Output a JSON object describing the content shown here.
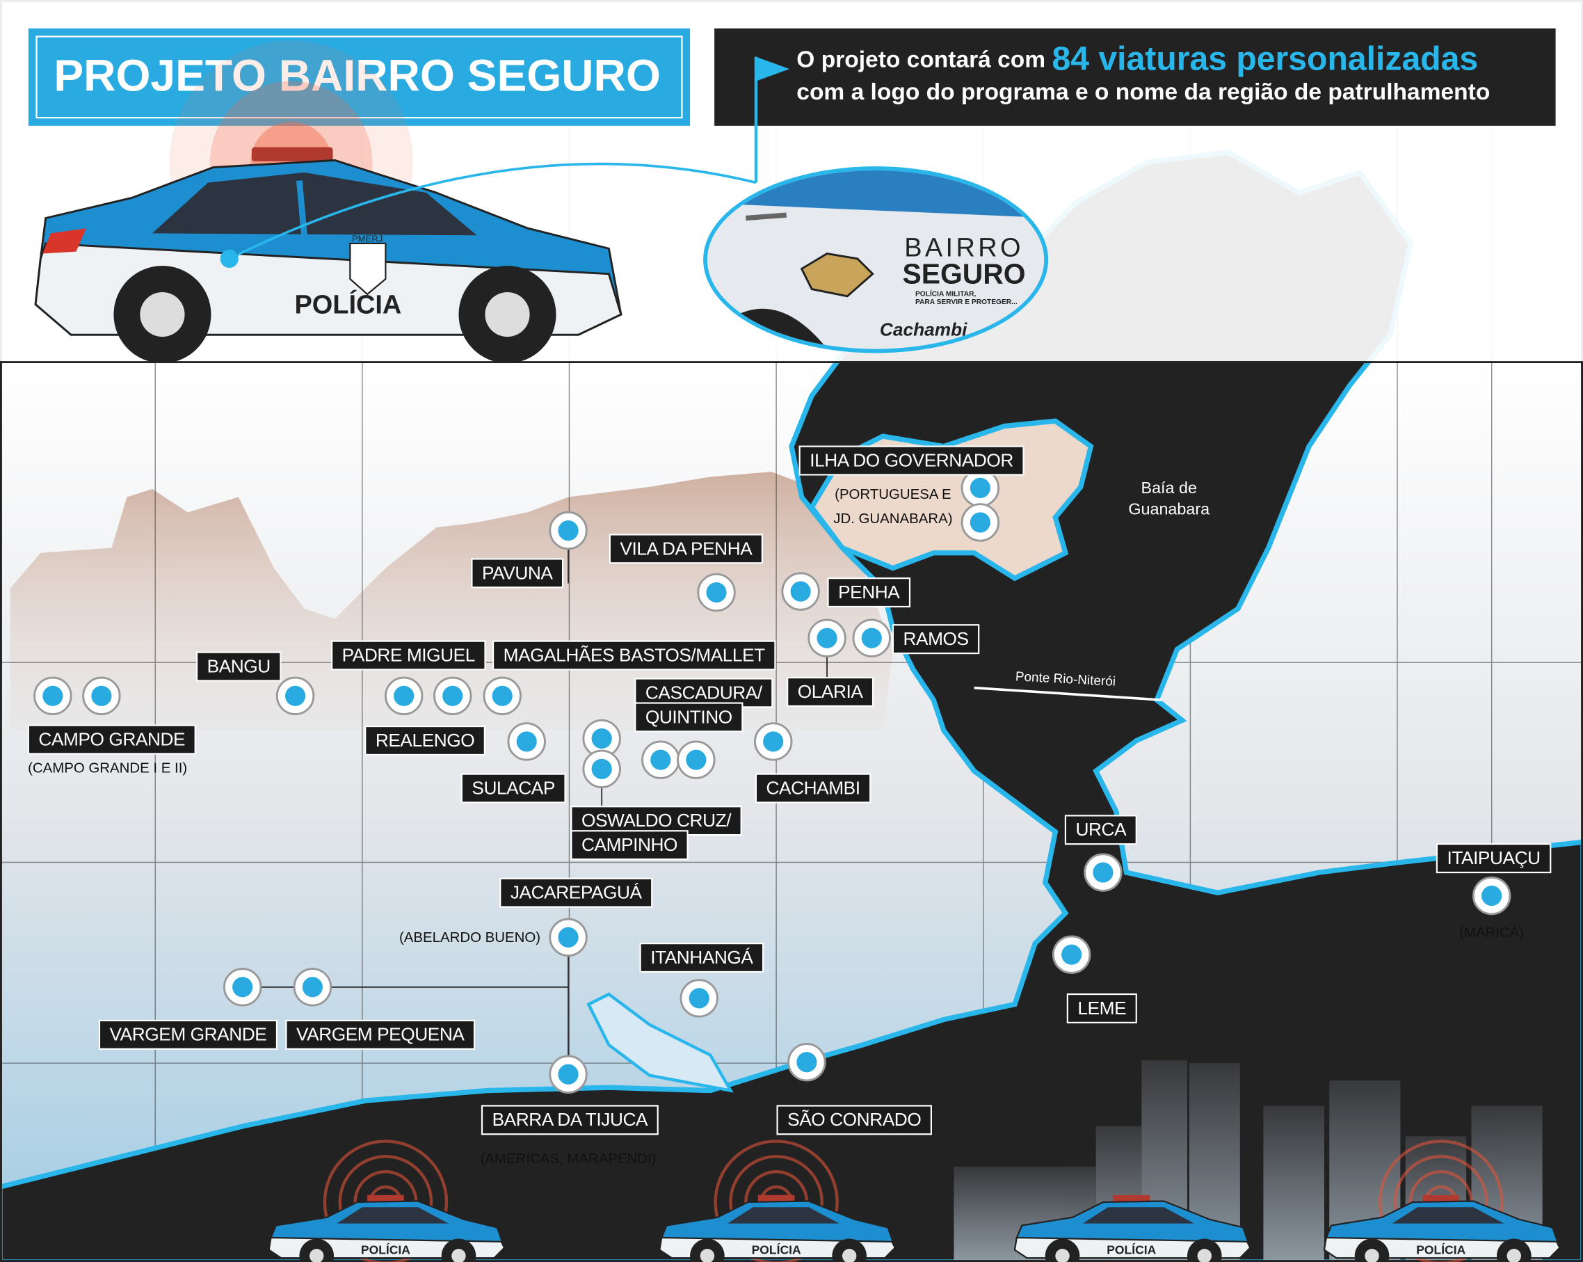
{
  "header": {
    "title": "PROJETO BAIRRO SEGURO",
    "callout": {
      "lead": "O projeto contará com",
      "highlight": "84 viaturas personalizadas",
      "line2": "com a logo do programa e o nome da região de patrulhamento"
    }
  },
  "car": {
    "label": "POLÍCIA",
    "badge": "PMERJ"
  },
  "logo": {
    "line1": "BAIRRO",
    "line2": "SEGURO",
    "tagline1": "POLÍCIA MILITAR,",
    "tagline2": "PARA SERVIR E PROTEGER...",
    "region": "Cachambi"
  },
  "map": {
    "water": [
      "Baía de",
      "Guanabara"
    ],
    "bridge": "Ponte Rio-Niterói",
    "labels": [
      {
        "lines": [
          "ILHA DO GOVERNADOR"
        ],
        "note": [
          "(PORTUGUESA E",
          "JD. GUANABARA)"
        ]
      },
      {
        "lines": [
          "PAVUNA"
        ]
      },
      {
        "lines": [
          "VILA DA PENHA"
        ]
      },
      {
        "lines": [
          "PENHA"
        ]
      },
      {
        "lines": [
          "RAMOS"
        ]
      },
      {
        "lines": [
          "OLARIA"
        ]
      },
      {
        "lines": [
          "BANGU"
        ]
      },
      {
        "lines": [
          "PADRE MIGUEL"
        ]
      },
      {
        "lines": [
          "MAGALHÃES BASTOS/MALLET"
        ]
      },
      {
        "lines": [
          "CASCADURA/",
          "QUINTINO"
        ]
      },
      {
        "lines": [
          "CAMPO GRANDE"
        ],
        "note": [
          "(CAMPO GRANDE I E II)"
        ]
      },
      {
        "lines": [
          "REALENGO"
        ]
      },
      {
        "lines": [
          "SULACAP"
        ]
      },
      {
        "lines": [
          "CACHAMBI"
        ]
      },
      {
        "lines": [
          "OSWALDO CRUZ/",
          "CAMPINHO"
        ]
      },
      {
        "lines": [
          "URCA"
        ]
      },
      {
        "lines": [
          "ITAIPUAÇU"
        ],
        "note": [
          "(MARICÁ)"
        ]
      },
      {
        "lines": [
          "JACAREPAGUÁ"
        ],
        "note": [
          "(ABELARDO BUENO)"
        ]
      },
      {
        "lines": [
          "ITANHANGÁ"
        ]
      },
      {
        "lines": [
          "LEME"
        ]
      },
      {
        "lines": [
          "VARGEM GRANDE"
        ]
      },
      {
        "lines": [
          "VARGEM PEQUENA"
        ]
      },
      {
        "lines": [
          "BARRA DA TIJUCA"
        ],
        "note": [
          "(AMÉRICAS, MARAPENDI)"
        ]
      },
      {
        "lines": [
          "SÃO CONRADO"
        ]
      }
    ]
  }
}
